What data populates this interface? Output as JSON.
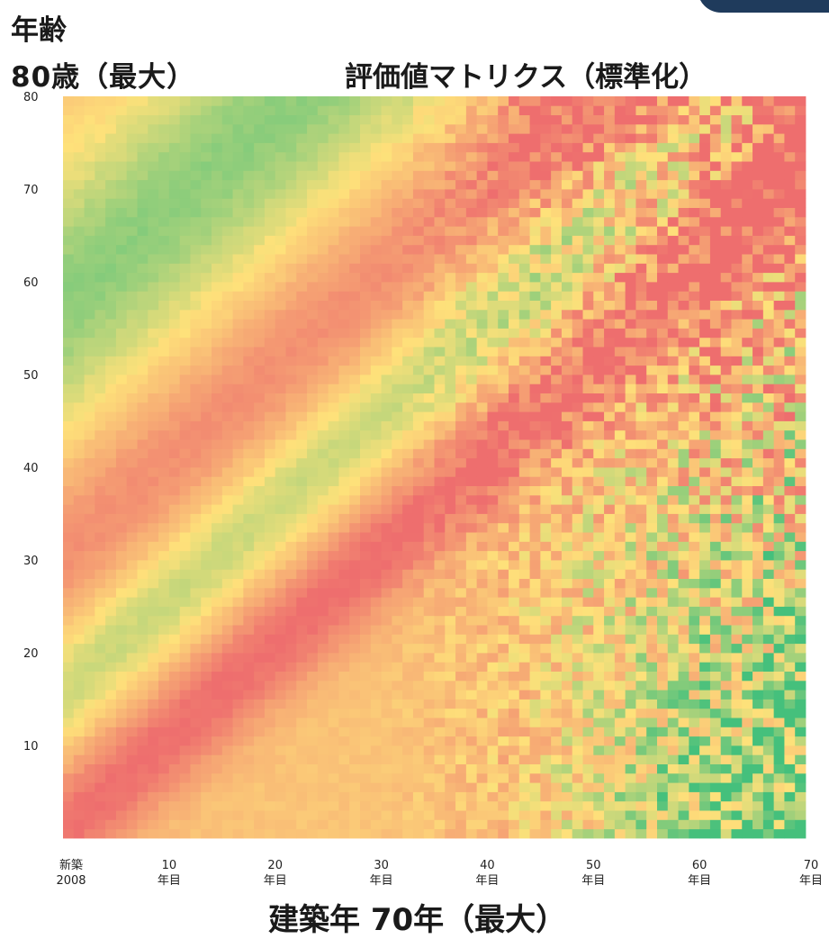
{
  "colors": {
    "high": "#ee6e6e",
    "mid": "#fee17a",
    "low": "#45c07c",
    "corner_tab": "#1f3b5c"
  },
  "header": {
    "y_axis_title": "年齢",
    "y_axis_max": "80歳（最大）",
    "title": "評価値マトリクス（標準化）"
  },
  "chart_data": {
    "type": "heatmap",
    "title": "評価値マトリクス（標準化）",
    "xlabel": "建築年 70年（最大）",
    "ylabel": "年齢",
    "ylabel_max": "80歳（最大）",
    "xlim": [
      0,
      70
    ],
    "ylim": [
      0,
      80
    ],
    "x_ticks": [
      {
        "value": 0,
        "line1": "新築",
        "line2": "2008"
      },
      {
        "value": 10,
        "line1": "10",
        "line2": "年目"
      },
      {
        "value": 20,
        "line1": "20",
        "line2": "年目"
      },
      {
        "value": 30,
        "line1": "30",
        "line2": "年目"
      },
      {
        "value": 40,
        "line1": "40",
        "line2": "年目"
      },
      {
        "value": 50,
        "line1": "50",
        "line2": "年目"
      },
      {
        "value": 60,
        "line1": "60",
        "line2": "年目"
      },
      {
        "value": 70,
        "line1": "70",
        "line2": "年目"
      }
    ],
    "y_ticks": [
      {
        "value": 10,
        "label": "10"
      },
      {
        "value": 20,
        "label": "20"
      },
      {
        "value": 30,
        "label": "30"
      },
      {
        "value": 40,
        "label": "40"
      },
      {
        "value": 50,
        "label": "50"
      },
      {
        "value": 60,
        "label": "60"
      },
      {
        "value": 70,
        "label": "70"
      },
      {
        "value": 80,
        "label": "80"
      }
    ],
    "grid": false,
    "color_scale": "red-yellow-green (high to low)"
  }
}
